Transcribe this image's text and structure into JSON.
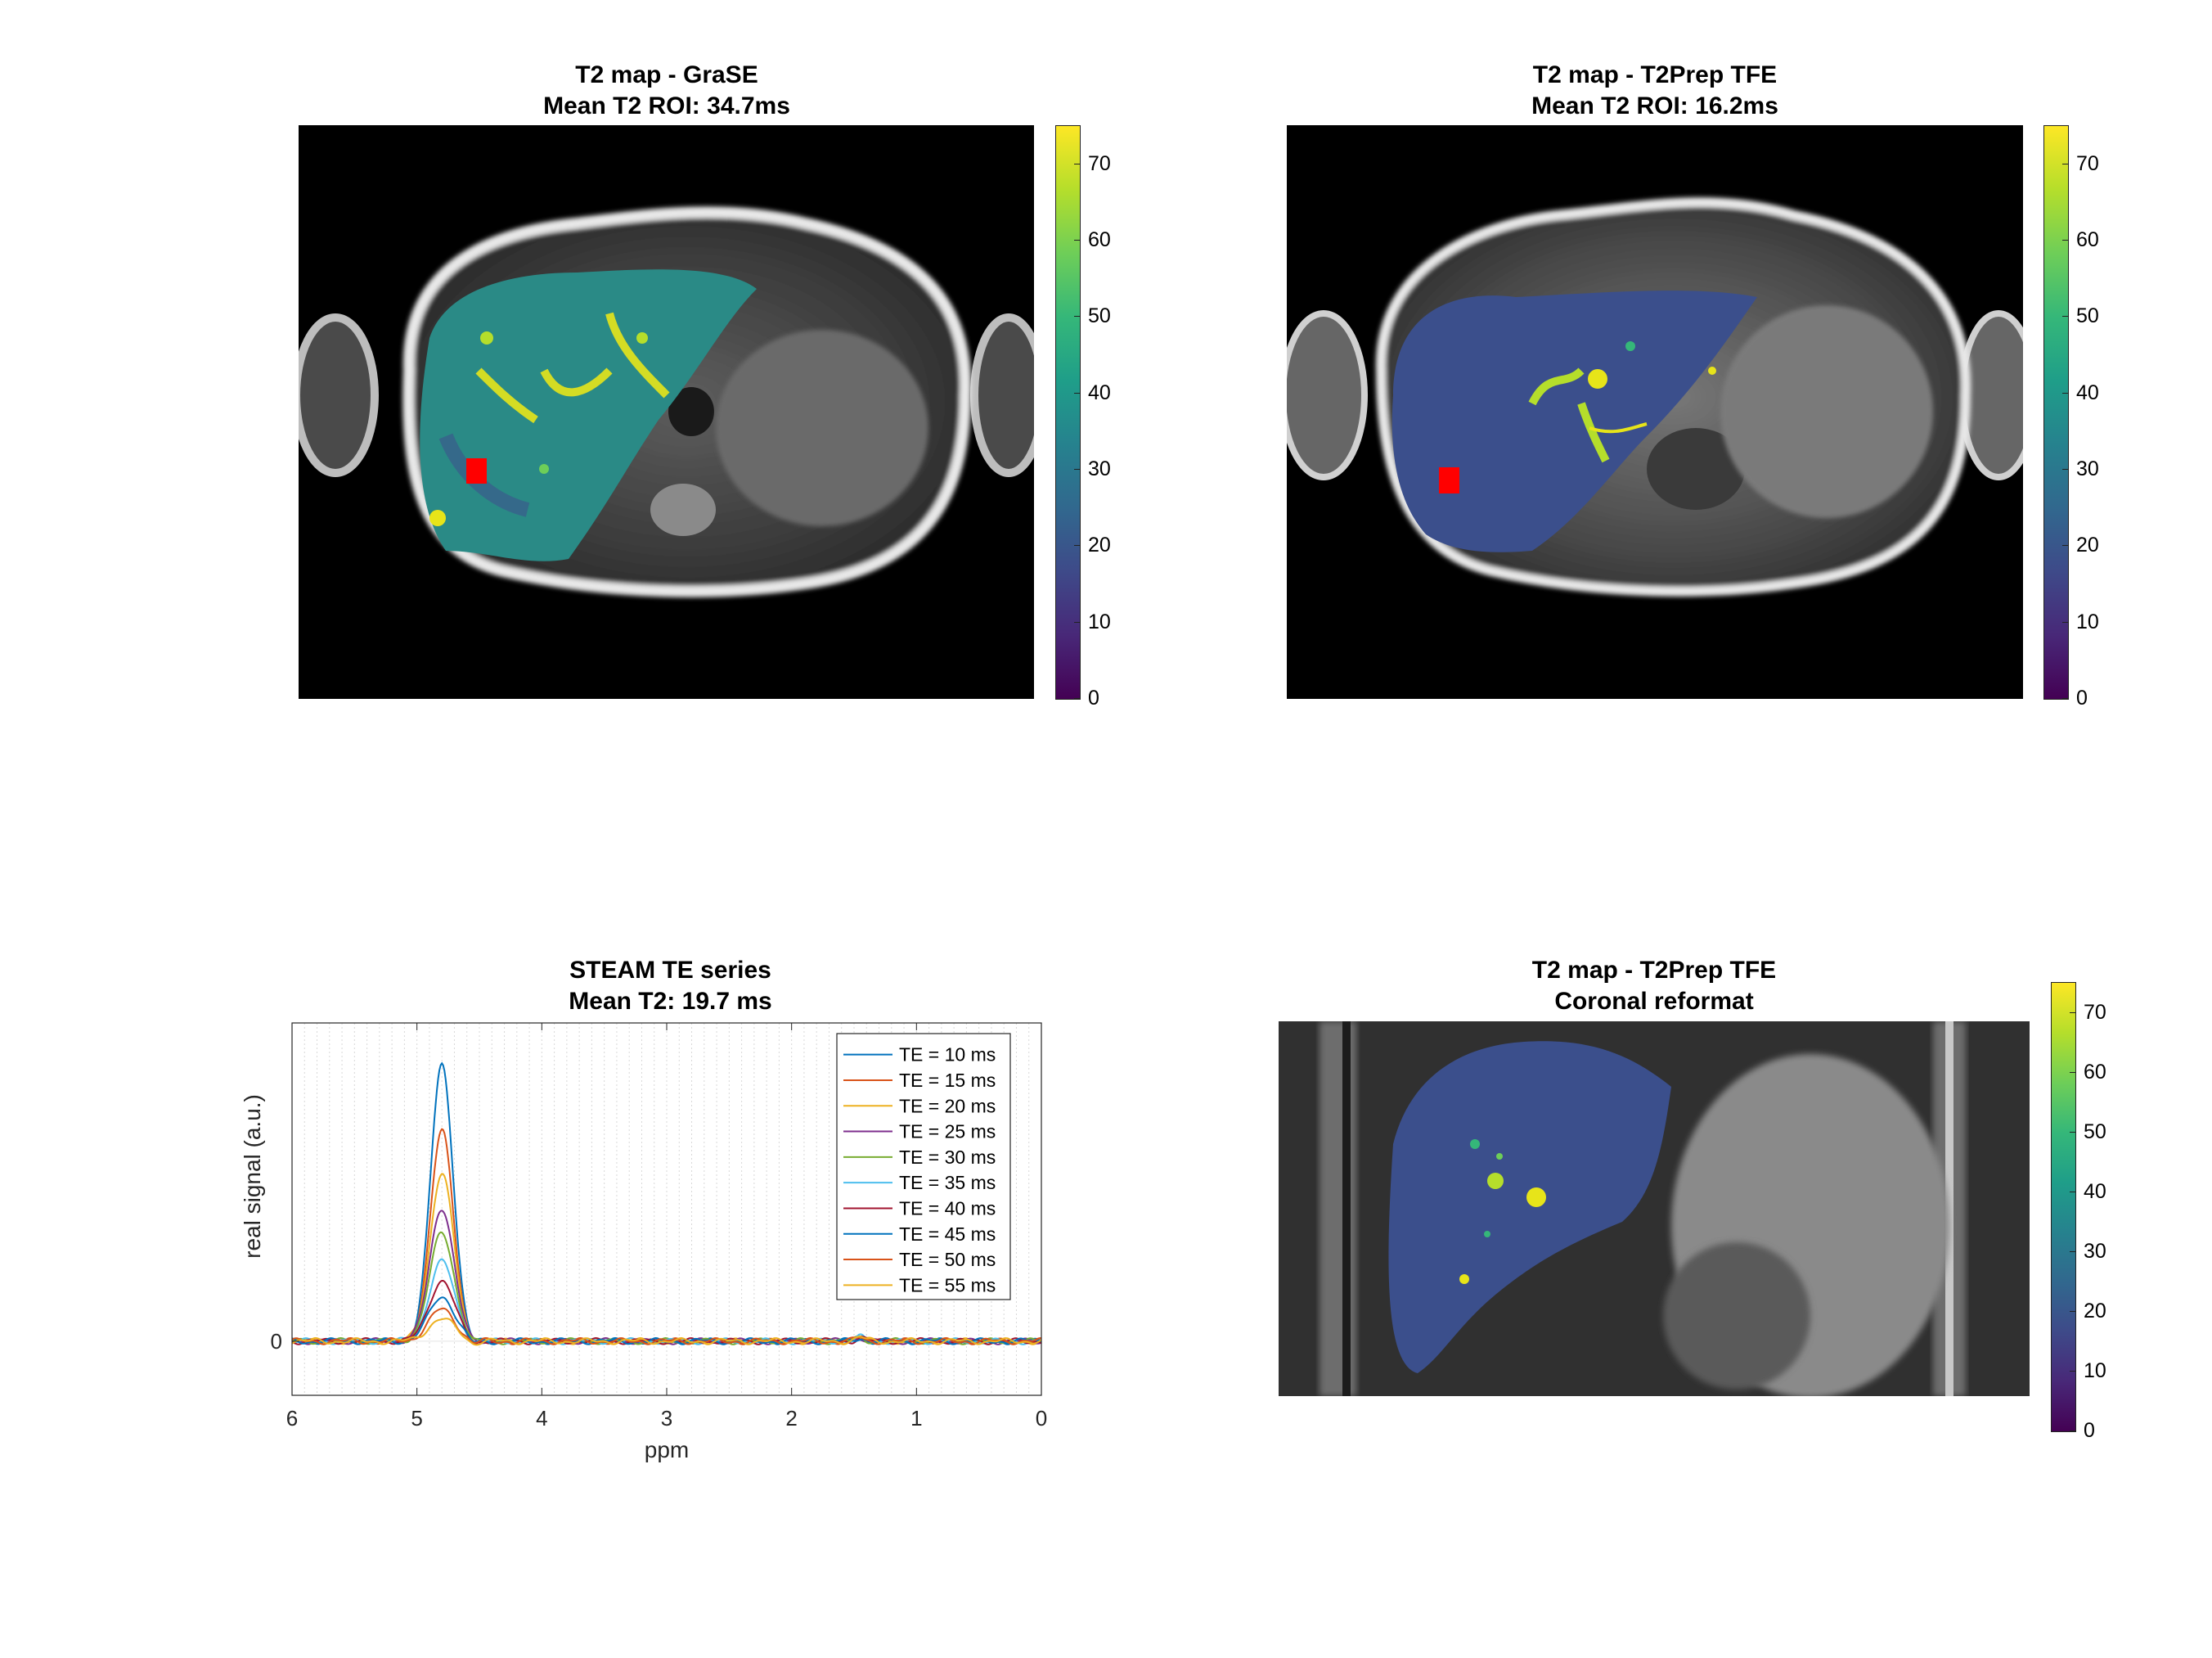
{
  "figure": {
    "panels": [
      {
        "id": "grase",
        "title_line1": "T2 map - GraSE",
        "title_line2": "Mean T2 ROI: 34.7ms"
      },
      {
        "id": "t2prep",
        "title_line1": "T2 map - T2Prep TFE",
        "title_line2": "Mean T2 ROI: 16.2ms"
      },
      {
        "id": "coronal",
        "title_line1": "T2 map - T2Prep TFE",
        "title_line2": "Coronal reformat"
      }
    ],
    "colorbar_ticks_a": [
      "70",
      "60",
      "50",
      "40",
      "30",
      "20",
      "10",
      "0"
    ],
    "colorbar_ticks_b": [
      "70",
      "60",
      "50",
      "40",
      "30",
      "20",
      "10",
      "0"
    ],
    "colorbar_range": [
      0,
      75
    ],
    "colormap": "viridis",
    "roi_color": "#ff0000"
  },
  "chart_data": [
    {
      "type": "line",
      "title": "STEAM TE series",
      "subtitle": "Mean T2: 19.7 ms",
      "xlabel": "ppm",
      "ylabel": "real signal (a.u.)",
      "x_reversed": true,
      "xlim": [
        0,
        6
      ],
      "xticks": [
        "6",
        "5",
        "4",
        "3",
        "2",
        "1",
        "0"
      ],
      "yticks": [
        "0"
      ],
      "ylim": [
        -0.17,
        1.0
      ],
      "peak_ppm": 4.8,
      "legend_position": "top-right",
      "grid": "minor-vertical",
      "series": [
        {
          "name": "TE = 10 ms",
          "color": "#0072BD",
          "peak": 0.87
        },
        {
          "name": "TE = 15 ms",
          "color": "#D95319",
          "peak": 0.66
        },
        {
          "name": "TE = 20 ms",
          "color": "#EDB120",
          "peak": 0.53
        },
        {
          "name": "TE = 25 ms",
          "color": "#7E2F8E",
          "peak": 0.42
        },
        {
          "name": "TE = 30 ms",
          "color": "#77AC30",
          "peak": 0.34
        },
        {
          "name": "TE = 35 ms",
          "color": "#4DBEEE",
          "peak": 0.25
        },
        {
          "name": "TE = 40 ms",
          "color": "#A2142F",
          "peak": 0.19
        },
        {
          "name": "TE = 45 ms",
          "color": "#0072BD",
          "peak": 0.14
        },
        {
          "name": "TE = 50 ms",
          "color": "#D95319",
          "peak": 0.1
        },
        {
          "name": "TE = 55 ms",
          "color": "#EDB120",
          "peak": 0.07
        }
      ]
    }
  ]
}
